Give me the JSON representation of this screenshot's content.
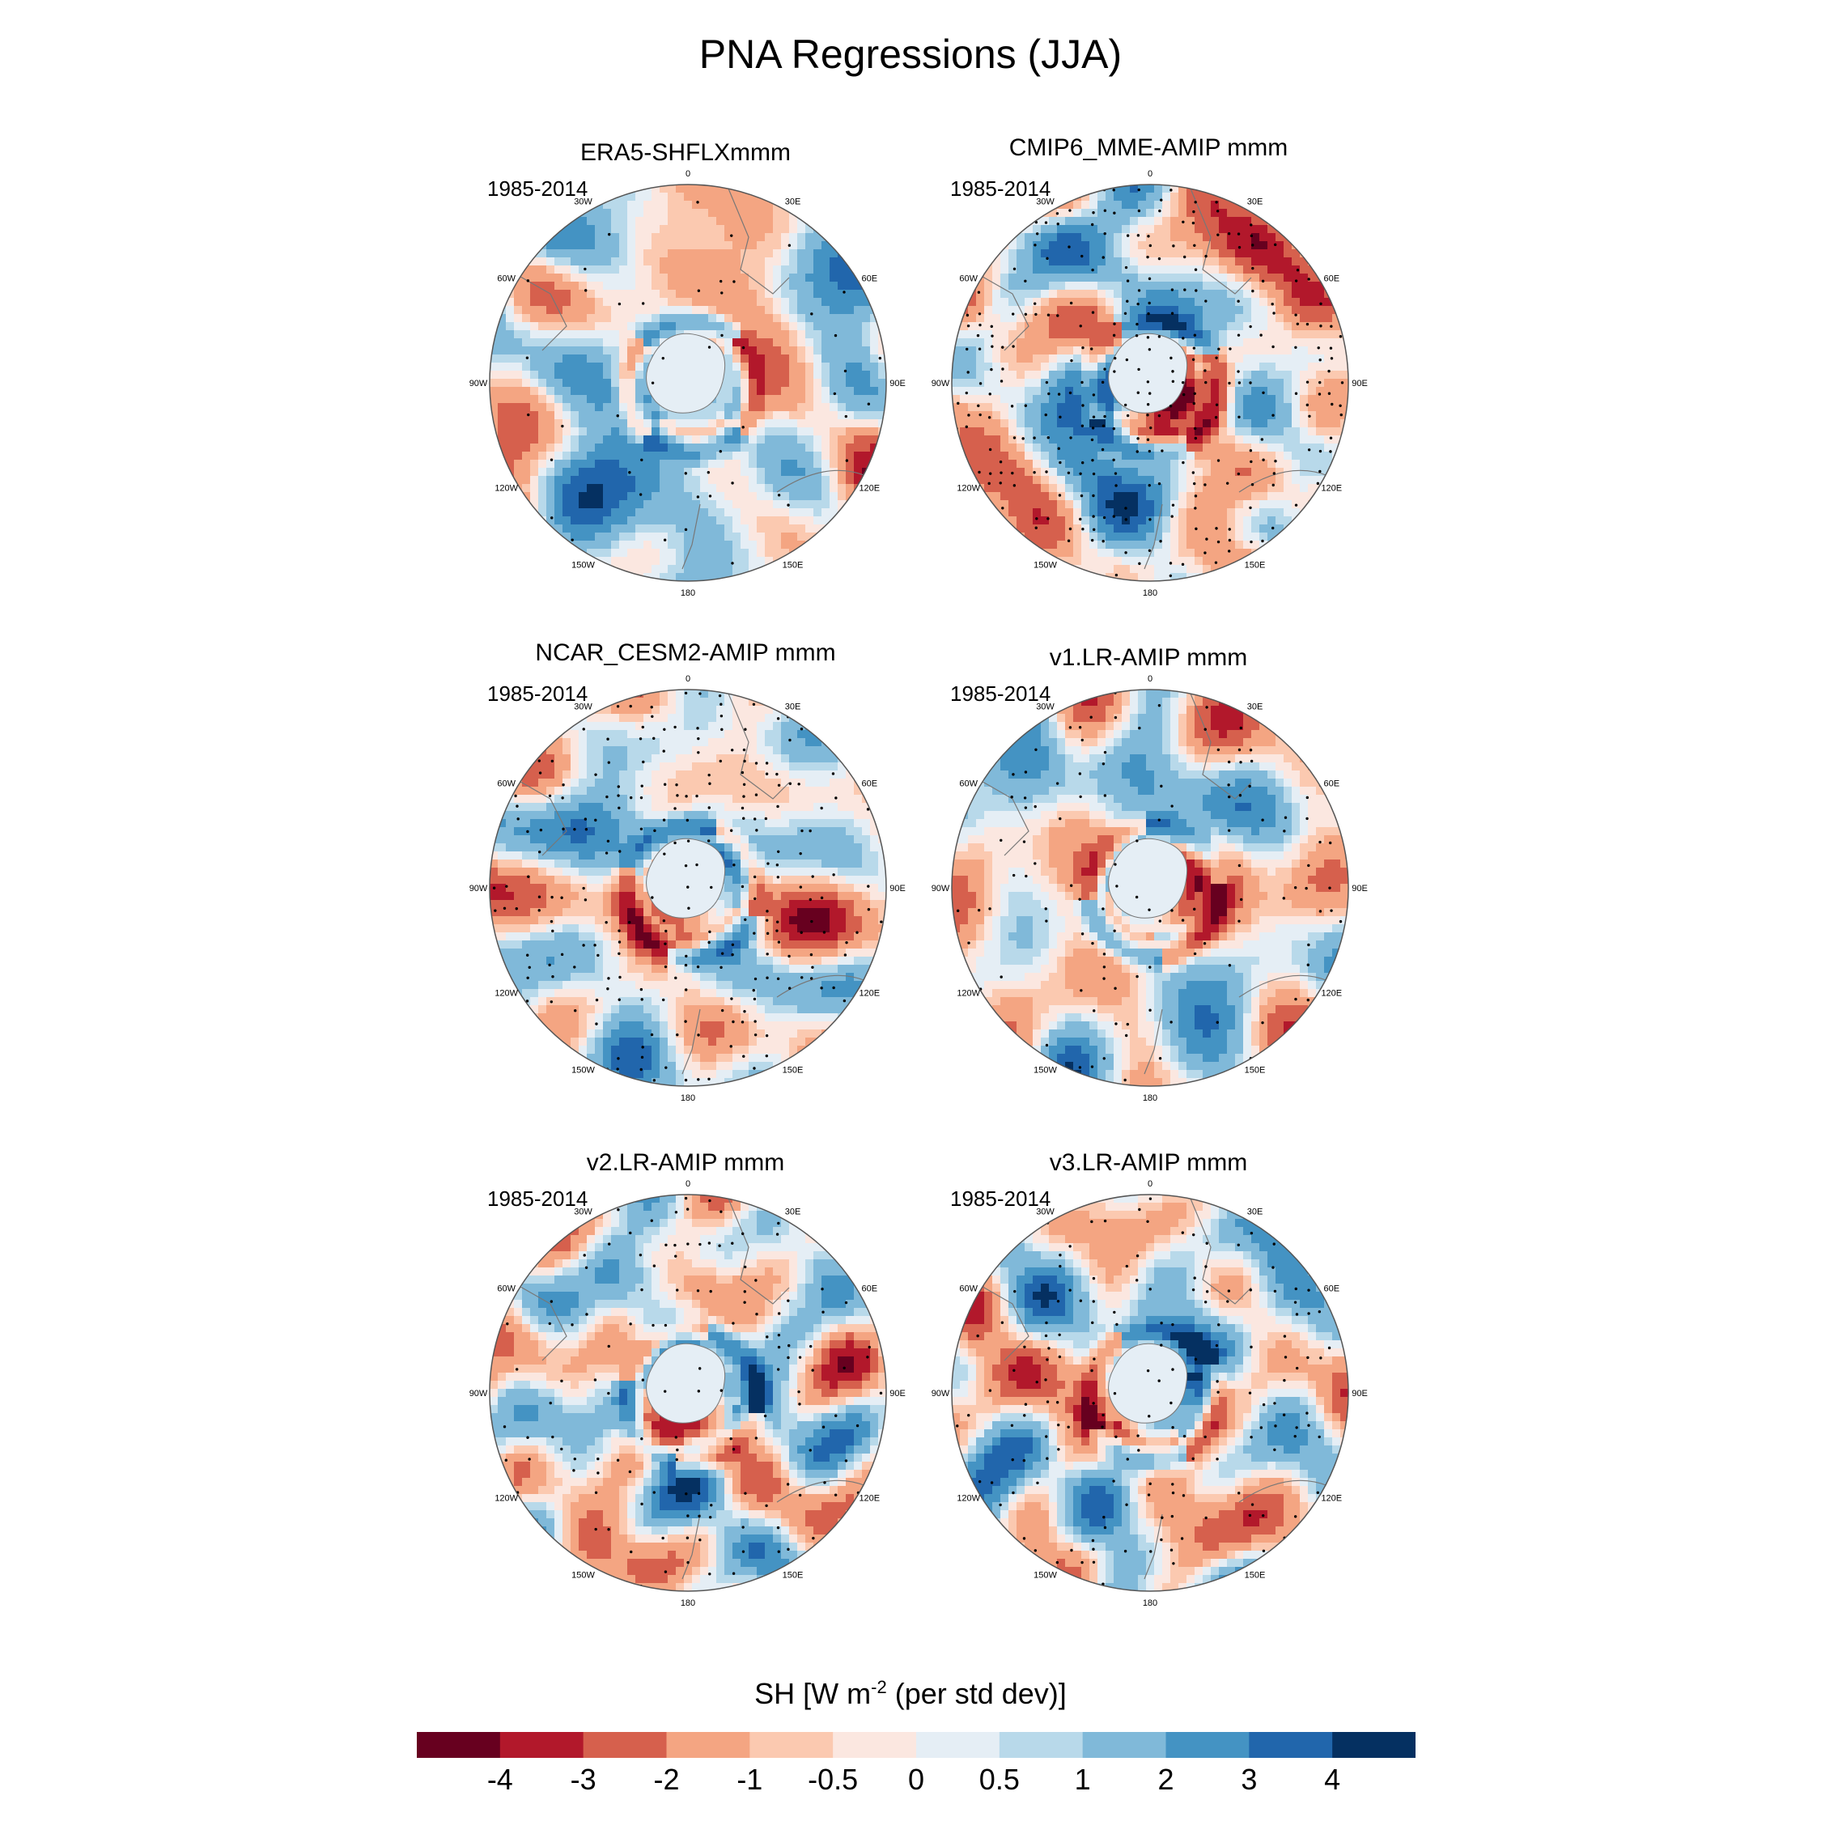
{
  "title": "PNA Regressions (JJA)",
  "panels": [
    {
      "title": "ERA5-SHFLXmmm",
      "period": "1985-2014",
      "seed": 11,
      "stipple": 0.05
    },
    {
      "title": "CMIP6_MME-AMIP  mmm",
      "period": "1985-2014",
      "seed": 23,
      "stipple": 0.32
    },
    {
      "title": "NCAR_CESM2-AMIP  mmm",
      "period": "1985-2014",
      "seed": 37,
      "stipple": 0.24
    },
    {
      "title": "v1.LR-AMIP  mmm",
      "period": "1985-2014",
      "seed": 41,
      "stipple": 0.12
    },
    {
      "title": "v2.LR-AMIP  mmm",
      "period": "1985-2014",
      "seed": 53,
      "stipple": 0.14
    },
    {
      "title": "v3.LR-AMIP  mmm",
      "period": "1985-2014",
      "seed": 67,
      "stipple": 0.16
    }
  ],
  "longitude_labels": [
    "0",
    "30E",
    "60E",
    "90E",
    "120E",
    "150E",
    "180",
    "150W",
    "120W",
    "90W",
    "60W",
    "30W"
  ],
  "colorbar": {
    "title_main": "SH [W m",
    "title_exp": "-2",
    "title_rest": " (per std dev)]",
    "levels": [
      "-4",
      "-3",
      "-2",
      "-1",
      "-0.5",
      "0",
      "0.5",
      "1",
      "2",
      "3",
      "4"
    ],
    "colors": [
      "#67001f",
      "#b2182b",
      "#d6604d",
      "#f4a582",
      "#fbc9b0",
      "#fbe7e0",
      "#e5eef5",
      "#b8d9ea",
      "#80b9d9",
      "#4493c3",
      "#2166ac",
      "#053061"
    ]
  }
}
